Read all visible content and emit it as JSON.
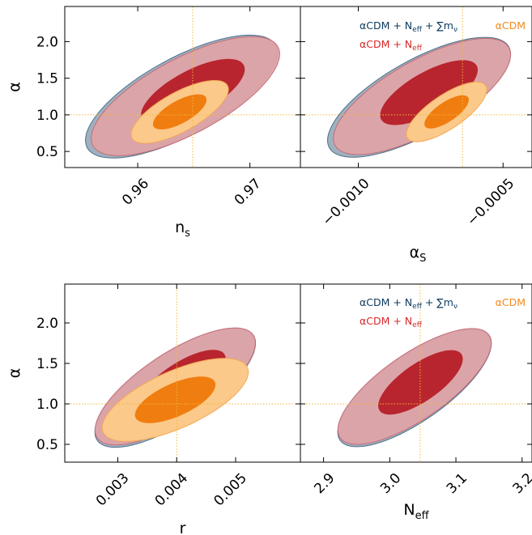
{
  "chart_data": [
    {
      "type": "contour",
      "panel": "top-left",
      "xlabel": "n_s",
      "ylabel": "α",
      "xlim": [
        0.9535,
        0.9745
      ],
      "ylim": [
        0.28,
        2.48
      ],
      "xticks": [
        "0.96",
        "0.97"
      ],
      "xtick_values": [
        0.96,
        0.97
      ],
      "yticks": [
        "0.5",
        "1.0",
        "1.5",
        "2.0"
      ],
      "ytick_values": [
        0.5,
        1.0,
        1.5,
        2.0
      ],
      "reference": {
        "x": 0.9649,
        "y": 1.0
      },
      "series": [
        {
          "name": "αCDM + N_eff + ∑m_ν",
          "color": "#2f5f7a",
          "x": [
            0.9555,
            0.9723
          ],
          "y": [
            0.55,
            1.95
          ],
          "sigma1": 0.55
        },
        {
          "name": "αCDM + N_eff",
          "color": "#d62728",
          "x": [
            0.956,
            0.9725
          ],
          "y": [
            0.58,
            1.93
          ],
          "sigma1": 0.55
        },
        {
          "name": "αCDM",
          "color": "#ff7f0e",
          "x": [
            0.9595,
            0.968
          ],
          "y": [
            0.68,
            1.4
          ],
          "sigma1": 0.55
        }
      ]
    },
    {
      "type": "contour",
      "panel": "top-right",
      "xlabel": "α_S",
      "ylabel": "",
      "xlim": [
        -0.0012,
        -0.0004
      ],
      "ylim": [
        0.28,
        2.48
      ],
      "xticks": [
        "−0.0010",
        "−0.0005"
      ],
      "xtick_values": [
        -0.001,
        -0.0005
      ],
      "yticks": [
        "0.5",
        "1.0",
        "1.5",
        "2.0"
      ],
      "ytick_values": [
        0.5,
        1.0,
        1.5,
        2.0
      ],
      "reference": {
        "x": -0.00064,
        "y": 1.0
      },
      "series": [
        {
          "name": "αCDM + N_eff + ∑m_ν",
          "color": "#2f5f7a",
          "x": [
            -0.0011,
            -0.00048
          ],
          "y": [
            0.55,
            1.93
          ],
          "sigma1": 0.55
        },
        {
          "name": "αCDM + N_eff",
          "color": "#d62728",
          "x": [
            -0.00108,
            -0.00048
          ],
          "y": [
            0.58,
            1.92
          ],
          "sigma1": 0.55
        },
        {
          "name": "αCDM",
          "color": "#ff7f0e",
          "x": [
            -0.00083,
            -0.00056
          ],
          "y": [
            0.68,
            1.4
          ],
          "sigma1": 0.55
        }
      ]
    },
    {
      "type": "contour",
      "panel": "bottom-left",
      "xlabel": "r",
      "ylabel": "α",
      "xlim": [
        0.0021,
        0.0061
      ],
      "ylim": [
        0.28,
        2.48
      ],
      "xticks": [
        "0.003",
        "0.004",
        "0.005"
      ],
      "xtick_values": [
        0.003,
        0.004,
        0.005
      ],
      "yticks": [
        "0.5",
        "1.0",
        "1.5",
        "2.0"
      ],
      "ytick_values": [
        0.5,
        1.0,
        1.5,
        2.0
      ],
      "reference": {
        "x": 0.004,
        "y": 1.0
      },
      "series": [
        {
          "name": "αCDM + N_eff + ∑m_ν",
          "color": "#2f5f7a",
          "x": [
            0.00265,
            0.0053
          ],
          "y": [
            0.55,
            1.85
          ],
          "sigma1": 0.55
        },
        {
          "name": "αCDM + N_eff",
          "color": "#d62728",
          "x": [
            0.00265,
            0.0053
          ],
          "y": [
            0.58,
            1.85
          ],
          "sigma1": 0.55
        },
        {
          "name": "αCDM",
          "color": "#ff7f0e",
          "x": [
            0.00275,
            0.0052
          ],
          "y": [
            0.65,
            1.45
          ],
          "sigma1": 0.55
        }
      ]
    },
    {
      "type": "contour",
      "panel": "bottom-right",
      "xlabel": "N_eff",
      "ylabel": "",
      "xlim": [
        2.865,
        3.215
      ],
      "ylim": [
        0.28,
        2.48
      ],
      "xticks": [
        "2.9",
        "3.0",
        "3.1",
        "3.2"
      ],
      "xtick_values": [
        2.9,
        3.0,
        3.1,
        3.2
      ],
      "yticks": [
        "0.5",
        "1.0",
        "1.5",
        "2.0"
      ],
      "ytick_values": [
        0.5,
        1.0,
        1.5,
        2.0
      ],
      "reference": {
        "x": 3.046,
        "y": 1.0
      },
      "series": [
        {
          "name": "αCDM + N_eff + ∑m_ν",
          "color": "#2f5f7a",
          "x": [
            2.925,
            3.15
          ],
          "y": [
            0.55,
            1.85
          ],
          "sigma1": 0.55
        },
        {
          "name": "αCDM + N_eff",
          "color": "#d62728",
          "x": [
            2.925,
            3.15
          ],
          "y": [
            0.58,
            1.85
          ],
          "sigma1": 0.55
        }
      ]
    }
  ],
  "legend": {
    "placement": "top",
    "entries": [
      {
        "label": "αCDM + N",
        "sub": "eff",
        "suffix": " + ∑m",
        "nu": "ν",
        "color": "#0b3a5e"
      },
      {
        "label": "αCDM",
        "color": "#f28a1c"
      },
      {
        "label": "αCDM + N",
        "sub": "eff",
        "color": "#d62728"
      }
    ]
  },
  "colors": {
    "neff_mnu_outer": "#9fb1bf",
    "neff_mnu_edge": "#4f7088",
    "neff_outer": "#e0a3a6",
    "neff_inner": "#b8252e",
    "lcdm_outer": "#fbc98a",
    "lcdm_inner": "#f07d0f",
    "reference_line": "#f3b73a"
  }
}
